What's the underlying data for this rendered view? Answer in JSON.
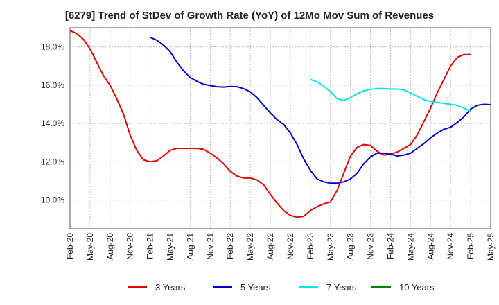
{
  "chart_data": {
    "type": "line",
    "title": "[6279]  Trend of StDev of Growth Rate (YoY) of 12Mo Mov Sum of Revenues",
    "xlabel": "",
    "ylabel": "",
    "ylim": [
      8.5,
      19.0
    ],
    "yticks": [
      10.0,
      12.0,
      14.0,
      16.0,
      18.0
    ],
    "ytick_format": "percent_1dp",
    "x_start": "Feb-20",
    "x_labels": [
      "Feb-20",
      "May-20",
      "Aug-20",
      "Nov-20",
      "Feb-21",
      "May-21",
      "Aug-21",
      "Nov-21",
      "Feb-22",
      "May-22",
      "Aug-22",
      "Nov-22",
      "Feb-23",
      "May-23",
      "Aug-23",
      "Nov-23",
      "Feb-24",
      "May-24",
      "Aug-24",
      "Nov-24",
      "Feb-25",
      "May-25"
    ],
    "x_range_months": [
      0,
      63
    ],
    "grid": true,
    "legend_position": "bottom",
    "colors": {
      "axis": "#555555",
      "grid": "#bbbbbb"
    },
    "series": [
      {
        "name": "3 Years",
        "color": "#dd0000",
        "start_month": 0,
        "values": [
          18.85,
          18.7,
          18.4,
          17.9,
          17.2,
          16.5,
          16.0,
          15.3,
          14.5,
          13.4,
          12.6,
          12.1,
          12.0,
          12.05,
          12.3,
          12.6,
          12.7,
          12.7,
          12.7,
          12.7,
          12.65,
          12.45,
          12.2,
          11.9,
          11.5,
          11.25,
          11.15,
          11.15,
          11.05,
          10.8,
          10.3,
          9.85,
          9.45,
          9.2,
          9.1,
          9.15,
          9.45,
          9.65,
          9.8,
          9.9,
          10.5,
          11.4,
          12.3,
          12.75,
          12.9,
          12.85,
          12.55,
          12.35,
          12.4,
          12.5,
          12.7,
          12.9,
          13.4,
          14.1,
          14.8,
          15.6,
          16.3,
          17.0,
          17.45,
          17.6,
          17.6
        ]
      },
      {
        "name": "5 Years",
        "color": "#0000cc",
        "start_month": 12,
        "values": [
          18.5,
          18.35,
          18.1,
          17.75,
          17.2,
          16.75,
          16.4,
          16.2,
          16.05,
          15.98,
          15.92,
          15.9,
          15.93,
          15.92,
          15.82,
          15.65,
          15.35,
          14.95,
          14.55,
          14.2,
          13.95,
          13.5,
          12.9,
          12.15,
          11.55,
          11.1,
          10.95,
          10.88,
          10.88,
          10.95,
          11.1,
          11.4,
          11.9,
          12.25,
          12.45,
          12.45,
          12.4,
          12.3,
          12.35,
          12.45,
          12.7,
          12.95,
          13.25,
          13.5,
          13.7,
          13.8,
          14.05,
          14.35,
          14.75,
          14.95,
          15.0,
          14.98
        ]
      },
      {
        "name": "7 Years",
        "color": "#00e5e5",
        "start_month": 36,
        "values": [
          16.3,
          16.18,
          15.95,
          15.65,
          15.3,
          15.2,
          15.35,
          15.55,
          15.7,
          15.78,
          15.82,
          15.82,
          15.8,
          15.8,
          15.75,
          15.6,
          15.42,
          15.25,
          15.15,
          15.1,
          15.05,
          15.0,
          14.95,
          14.8,
          14.65
        ]
      },
      {
        "name": "10 Years",
        "color": "#008000",
        "start_month": 0,
        "values": []
      }
    ]
  }
}
